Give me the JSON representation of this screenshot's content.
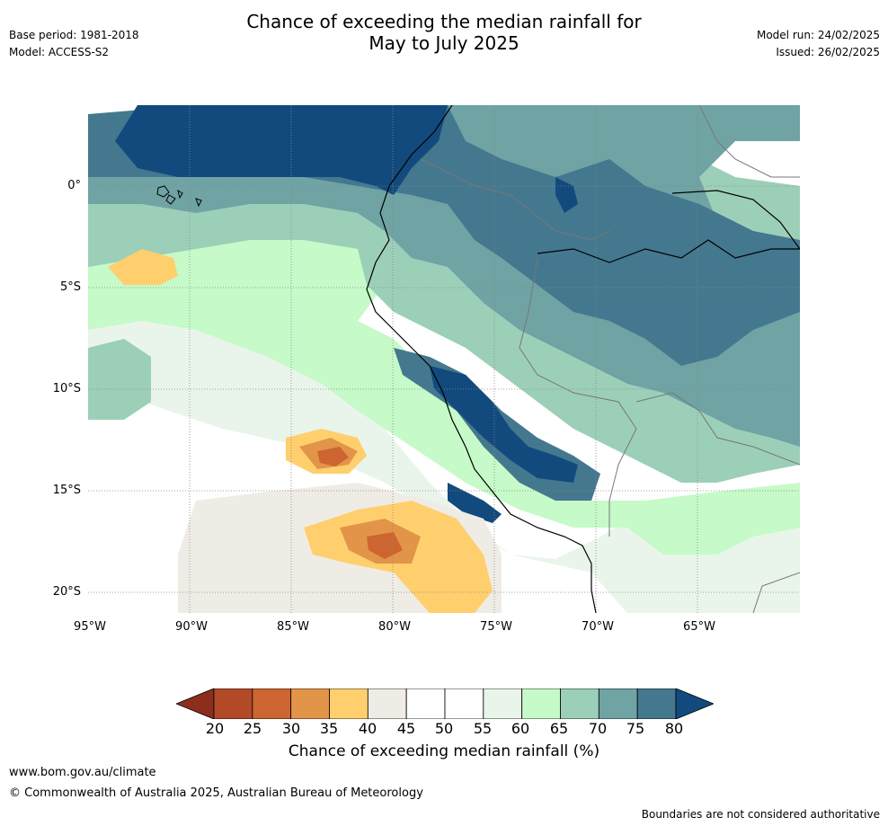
{
  "title_line1": "Chance of exceeding the median rainfall for",
  "title_line2": "May to July 2025",
  "meta_left": {
    "base_period": "Base period: 1981-2018",
    "model": "Model: ACCESS-S2"
  },
  "meta_right": {
    "model_run": "Model run: 24/02/2025",
    "issued": "Issued: 26/02/2025"
  },
  "map": {
    "lat_labels": [
      "0°",
      "5°S",
      "10°S",
      "15°S",
      "20°S"
    ],
    "lon_labels": [
      "95°W",
      "90°W",
      "85°W",
      "80°W",
      "75°W",
      "70°W",
      "65°W"
    ]
  },
  "colorbar": {
    "ticks": [
      "20",
      "25",
      "30",
      "35",
      "40",
      "45",
      "50",
      "55",
      "60",
      "65",
      "70",
      "75",
      "80"
    ],
    "colors": [
      "#8b2e1c",
      "#b24a27",
      "#cc6530",
      "#e29449",
      "#ffcf6e",
      "#efece6",
      "#ffffff",
      "#ffffff",
      "#e9f5ea",
      "#c6fac8",
      "#9ccfb8",
      "#6fa3a4",
      "#44788f",
      "#134a7e"
    ],
    "label": "Chance of exceeding median rainfall (%)"
  },
  "footer": {
    "url": "www.bom.gov.au/climate",
    "copyright": "© Commonwealth of Australia 2025, Australian Bureau of Meteorology",
    "disclaimer": "Boundaries are not considered authoritative"
  }
}
